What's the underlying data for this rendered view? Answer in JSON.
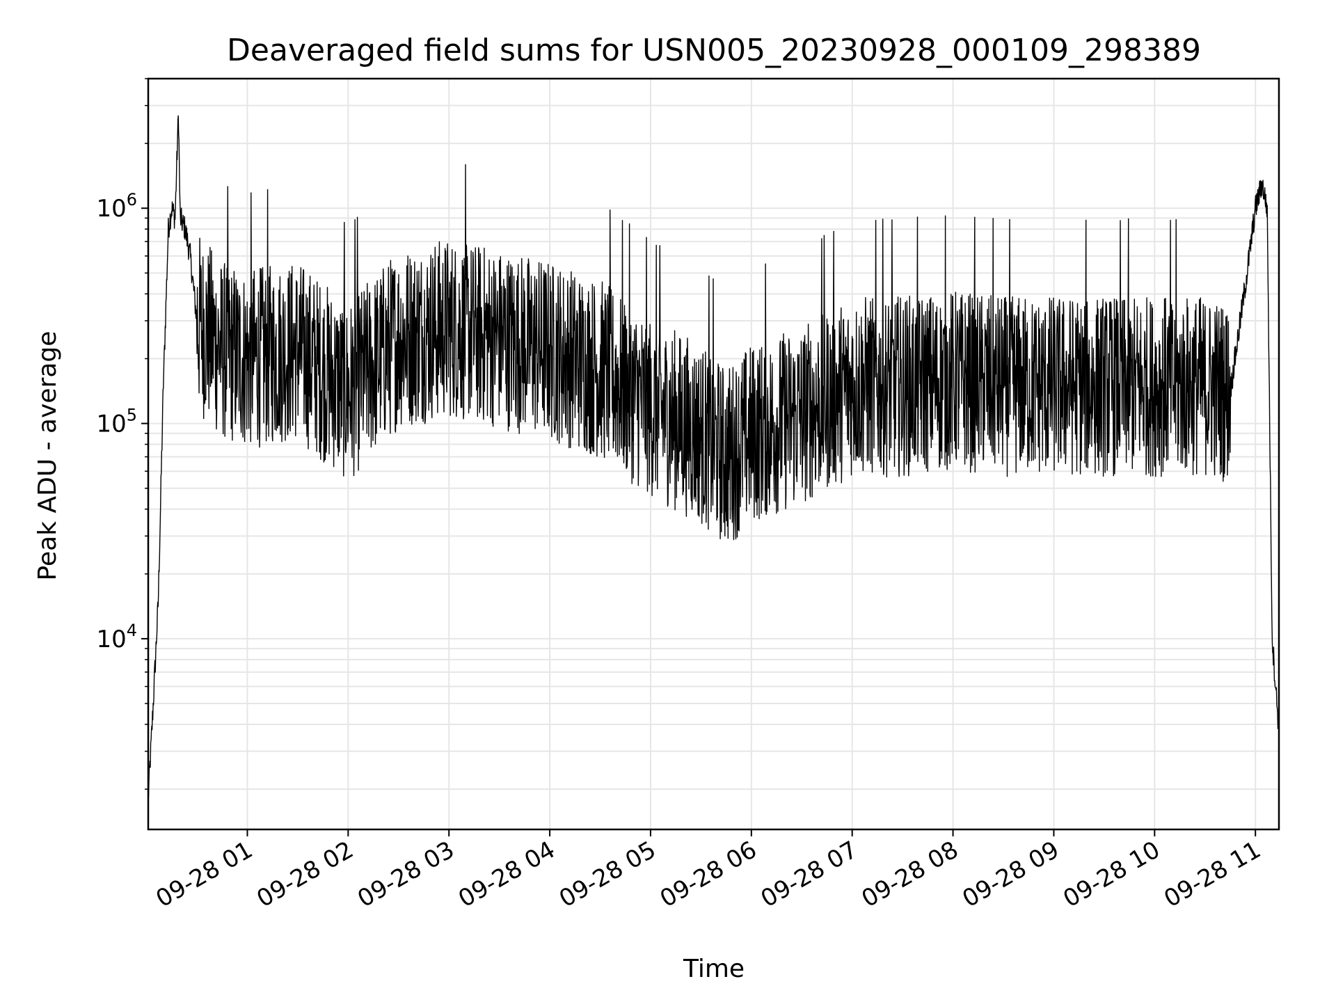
{
  "chart_data": {
    "type": "line",
    "title": "Deaveraged field sums for USN005_20230928_000109_298389",
    "xlabel": "Time",
    "ylabel": "Peak ADU - average",
    "yscale": "log",
    "grid": true,
    "colors": {
      "line": "#000000",
      "grid": "#e6e6e6",
      "axes": "#000000"
    },
    "xlim": [
      "2023-09-28 00:01",
      "2023-09-28 11:14"
    ],
    "ylim": [
      1300,
      4000000
    ],
    "x_ticks": [
      {
        "value": "2023-09-28 01:00",
        "label": "09-28 01"
      },
      {
        "value": "2023-09-28 02:00",
        "label": "09-28 02"
      },
      {
        "value": "2023-09-28 03:00",
        "label": "09-28 03"
      },
      {
        "value": "2023-09-28 04:00",
        "label": "09-28 04"
      },
      {
        "value": "2023-09-28 05:00",
        "label": "09-28 05"
      },
      {
        "value": "2023-09-28 06:00",
        "label": "09-28 06"
      },
      {
        "value": "2023-09-28 07:00",
        "label": "09-28 07"
      },
      {
        "value": "2023-09-28 08:00",
        "label": "09-28 08"
      },
      {
        "value": "2023-09-28 09:00",
        "label": "09-28 09"
      },
      {
        "value": "2023-09-28 10:00",
        "label": "09-28 10"
      },
      {
        "value": "2023-09-28 11:00",
        "label": "09-28 11"
      }
    ],
    "y_ticks": [
      {
        "value": 10000,
        "base": "10",
        "exp": "4"
      },
      {
        "value": 100000,
        "base": "10",
        "exp": "5"
      },
      {
        "value": 1000000,
        "base": "10",
        "exp": "6"
      }
    ],
    "series": [
      {
        "color": "#000000",
        "x": [
          "2023-09-28 00:01",
          "2023-09-28 00:04",
          "2023-09-28 00:07",
          "2023-09-28 00:10",
          "2023-09-28 00:13",
          "2023-09-28 00:15",
          "2023-09-28 00:17",
          "2023-09-28 00:19",
          "2023-09-28 00:20",
          "2023-09-28 00:23",
          "2023-09-28 00:26",
          "2023-09-28 00:30",
          "2023-09-28 00:45",
          "2023-09-28 01:00",
          "2023-09-28 01:30",
          "2023-09-28 02:00",
          "2023-09-28 02:30",
          "2023-09-28 03:00",
          "2023-09-28 03:30",
          "2023-09-28 04:00",
          "2023-09-28 04:30",
          "2023-09-28 05:00",
          "2023-09-28 05:30",
          "2023-09-28 05:45",
          "2023-09-28 06:00",
          "2023-09-28 06:30",
          "2023-09-28 07:00",
          "2023-09-28 07:30",
          "2023-09-28 08:00",
          "2023-09-28 08:30",
          "2023-09-28 09:00",
          "2023-09-28 09:30",
          "2023-09-28 10:00",
          "2023-09-28 10:30",
          "2023-09-28 10:45",
          "2023-09-28 10:55",
          "2023-09-28 11:00",
          "2023-09-28 11:04",
          "2023-09-28 11:07",
          "2023-09-28 11:10",
          "2023-09-28 11:14"
        ],
        "y": [
          1800,
          5000,
          15000,
          150000,
          800000,
          1000000,
          900000,
          2800000,
          900000,
          800000,
          600000,
          300000,
          220000,
          200000,
          220000,
          140000,
          250000,
          280000,
          250000,
          220000,
          180000,
          120000,
          90000,
          70000,
          90000,
          110000,
          150000,
          150000,
          160000,
          150000,
          150000,
          150000,
          150000,
          150000,
          140000,
          500000,
          1000000,
          1300000,
          1000000,
          10000,
          3700
        ]
      }
    ]
  }
}
